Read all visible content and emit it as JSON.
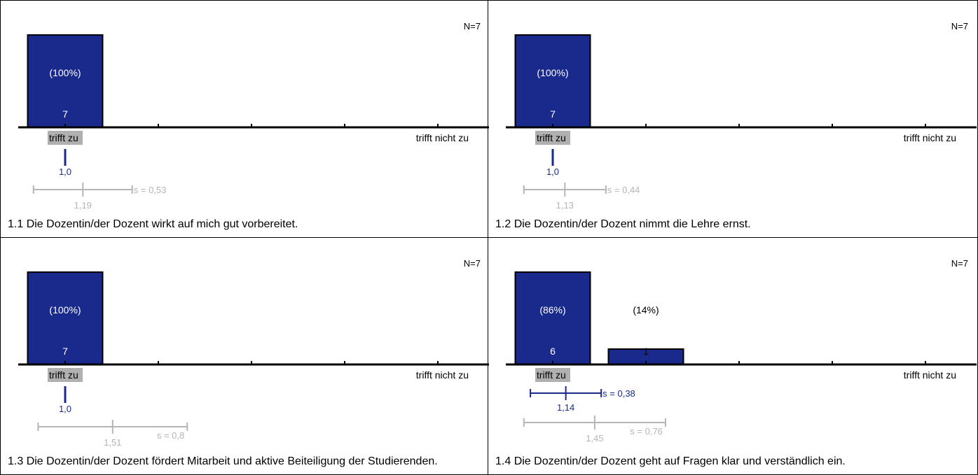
{
  "colors": {
    "bar": "#1a2a8c",
    "mean": "#1a2a8c",
    "reference": "#b5b5b5",
    "label_bg": "#b0b0b0"
  },
  "scale": {
    "left_label": "trifft zu",
    "right_label": "trifft nicht zu"
  },
  "chart_data": [
    {
      "type": "bar",
      "title": "1.1 Die Dozentin/der Dozent wirkt auf mich gut vorbereitet.",
      "n_label": "N=7",
      "categories": [
        "1",
        "2",
        "3",
        "4",
        "5"
      ],
      "values": [
        7,
        0,
        0,
        0,
        0
      ],
      "percent_labels": [
        "(100%)",
        "",
        "",
        "",
        ""
      ],
      "count_labels": [
        "7",
        "",
        "",
        "",
        ""
      ],
      "mean": {
        "value": 1.0,
        "label": "1,0",
        "sd": null,
        "sd_label": ""
      },
      "reference": {
        "value": 1.19,
        "label": "1,19",
        "sd": 0.53,
        "sd_label": "s = 0,53"
      }
    },
    {
      "type": "bar",
      "title": "1.2 Die Dozentin/der Dozent nimmt die Lehre ernst.",
      "n_label": "N=7",
      "categories": [
        "1",
        "2",
        "3",
        "4",
        "5"
      ],
      "values": [
        7,
        0,
        0,
        0,
        0
      ],
      "percent_labels": [
        "(100%)",
        "",
        "",
        "",
        ""
      ],
      "count_labels": [
        "7",
        "",
        "",
        "",
        ""
      ],
      "mean": {
        "value": 1.0,
        "label": "1,0",
        "sd": null,
        "sd_label": ""
      },
      "reference": {
        "value": 1.13,
        "label": "1,13",
        "sd": 0.44,
        "sd_label": "s = 0,44"
      }
    },
    {
      "type": "bar",
      "title": "1.3 Die Dozentin/der Dozent fördert Mitarbeit und aktive Beiteiligung der Studierenden.",
      "n_label": "N=7",
      "categories": [
        "1",
        "2",
        "3",
        "4",
        "5"
      ],
      "values": [
        7,
        0,
        0,
        0,
        0
      ],
      "percent_labels": [
        "(100%)",
        "",
        "",
        "",
        ""
      ],
      "count_labels": [
        "7",
        "",
        "",
        "",
        ""
      ],
      "mean": {
        "value": 1.0,
        "label": "1,0",
        "sd": null,
        "sd_label": ""
      },
      "reference": {
        "value": 1.51,
        "label": "1,51",
        "sd": 0.8,
        "sd_label": "s = 0,8"
      }
    },
    {
      "type": "bar",
      "title": "1.4 Die Dozentin/der Dozent geht auf Fragen klar und verständlich ein.",
      "n_label": "N=7",
      "categories": [
        "1",
        "2",
        "3",
        "4",
        "5"
      ],
      "values": [
        6,
        1,
        0,
        0,
        0
      ],
      "percent_labels": [
        "(86%)",
        "(14%)",
        "",
        "",
        ""
      ],
      "count_labels": [
        "6",
        "1",
        "",
        "",
        ""
      ],
      "mean": {
        "value": 1.14,
        "label": "1,14",
        "sd": 0.38,
        "sd_label": "s = 0,38"
      },
      "reference": {
        "value": 1.45,
        "label": "1,45",
        "sd": 0.76,
        "sd_label": "s = 0,76"
      }
    }
  ]
}
